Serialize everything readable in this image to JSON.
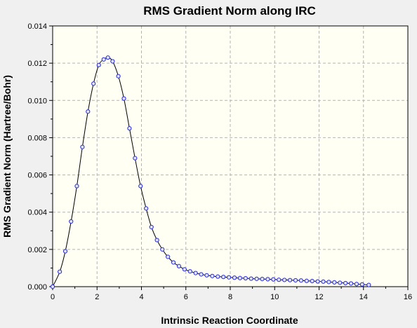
{
  "chart_data": {
    "type": "line",
    "title": "RMS Gradient Norm along IRC",
    "xlabel": "Intrinsic Reaction Coordinate",
    "ylabel": "RMS Gradient Norm (Hartree/Bohr)",
    "xlim": [
      0,
      16
    ],
    "ylim": [
      0,
      0.014
    ],
    "xticks": [
      0,
      2,
      4,
      6,
      8,
      10,
      12,
      14,
      16
    ],
    "xtick_labels": [
      "0",
      "2",
      "4",
      "6",
      "8",
      "10",
      "12",
      "14",
      "16"
    ],
    "yticks": [
      0,
      0.002,
      0.004,
      0.006,
      0.008,
      0.01,
      0.012,
      0.014
    ],
    "ytick_labels": [
      "0.000",
      "0.002",
      "0.004",
      "0.006",
      "0.008",
      "0.010",
      "0.012",
      "0.014"
    ],
    "grid": true,
    "legend": false,
    "series": [
      {
        "line_color": "#000000",
        "marker_color": "#2a2ad8",
        "marker_fill": "#dfe4ff",
        "x": [
          0.0,
          0.32,
          0.57,
          0.83,
          1.09,
          1.34,
          1.59,
          1.84,
          2.08,
          2.3,
          2.49,
          2.7,
          2.96,
          3.21,
          3.46,
          3.71,
          3.96,
          4.21,
          4.45,
          4.7,
          4.94,
          5.19,
          5.44,
          5.69,
          5.94,
          6.19,
          6.44,
          6.69,
          6.94,
          7.19,
          7.44,
          7.69,
          7.94,
          8.19,
          8.44,
          8.69,
          8.94,
          9.19,
          9.44,
          9.69,
          9.94,
          10.19,
          10.44,
          10.69,
          10.94,
          11.19,
          11.44,
          11.69,
          11.94,
          12.19,
          12.44,
          12.69,
          12.94,
          13.19,
          13.44,
          13.69,
          13.94,
          14.24
        ],
        "y": [
          0.0,
          0.0008,
          0.0019,
          0.0035,
          0.0054,
          0.0075,
          0.0094,
          0.0109,
          0.0119,
          0.0122,
          0.0123,
          0.0121,
          0.0113,
          0.0101,
          0.0085,
          0.0069,
          0.0054,
          0.0042,
          0.0032,
          0.0025,
          0.002,
          0.0016,
          0.0013,
          0.0011,
          0.00093,
          0.00082,
          0.00073,
          0.00066,
          0.00061,
          0.00057,
          0.00054,
          0.00052,
          0.0005,
          0.00048,
          0.00046,
          0.00045,
          0.00043,
          0.00042,
          0.00041,
          0.0004,
          0.00039,
          0.00037,
          0.00036,
          0.00035,
          0.00034,
          0.00033,
          0.00031,
          0.0003,
          0.00028,
          0.00027,
          0.00025,
          0.00023,
          0.00021,
          0.00019,
          0.00017,
          0.00014,
          0.00012,
          9e-05
        ]
      }
    ]
  }
}
